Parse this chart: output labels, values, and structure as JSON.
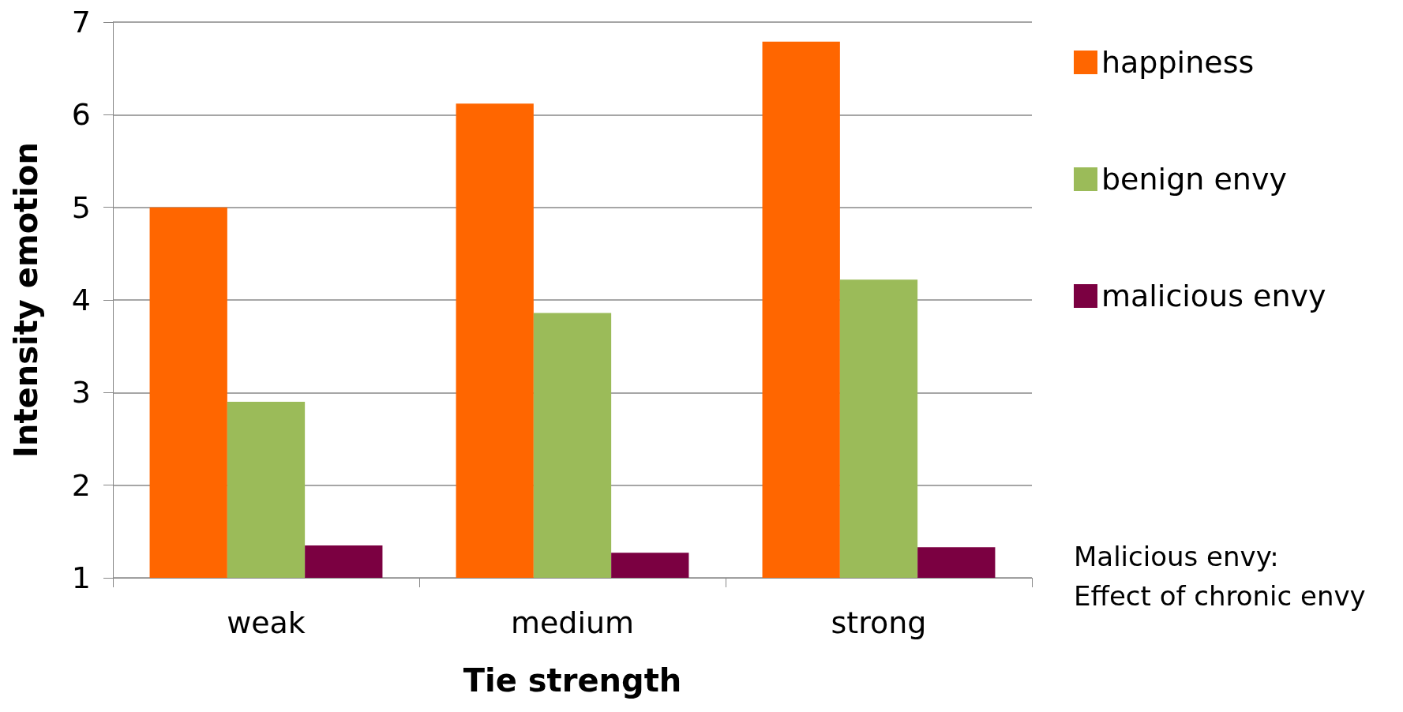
{
  "chart_data": {
    "type": "bar",
    "xlabel": "Tie strength",
    "ylabel": "Intensity emotion",
    "categories": [
      "weak",
      "medium",
      "strong"
    ],
    "series": [
      {
        "name": "happiness",
        "color": "#ff6600",
        "values": [
          5.0,
          6.12,
          6.79
        ]
      },
      {
        "name": "benign envy",
        "color": "#9bbb59",
        "values": [
          2.9,
          3.86,
          4.22
        ]
      },
      {
        "name": "malicious envy",
        "color": "#7b0041",
        "values": [
          1.35,
          1.27,
          1.33
        ]
      }
    ],
    "ylim": [
      1,
      7
    ],
    "yticks": [
      1,
      2,
      3,
      4,
      5,
      6,
      7
    ],
    "grid": "y",
    "legend": "right",
    "annotations": [
      "Malicious envy:\nEffect of chronic envy"
    ]
  }
}
